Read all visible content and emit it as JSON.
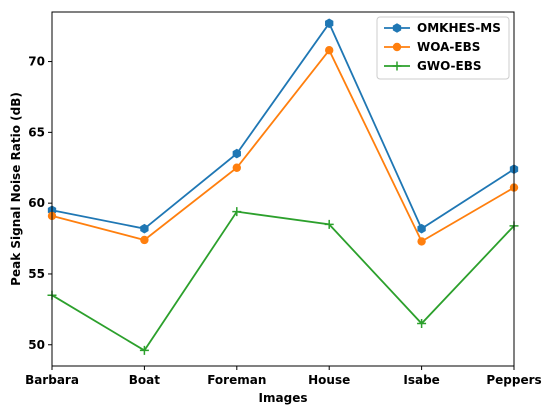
{
  "chart_data": {
    "type": "line",
    "title": "",
    "xlabel": "Images",
    "ylabel": "Peak Signal Noise Ratio (dB)",
    "categories": [
      "Barbara",
      "Boat",
      "Foreman",
      "House",
      "Isabe",
      "Peppers"
    ],
    "ylim": [
      48.5,
      73.5
    ],
    "yticks": [
      50,
      55,
      60,
      65,
      70
    ],
    "grid": false,
    "legend_position": "top-right",
    "series": [
      {
        "name": "OMKHES-MS",
        "color": "#1f77b4",
        "marker": "hexagon",
        "values": [
          59.5,
          58.2,
          63.5,
          72.7,
          58.2,
          62.4
        ]
      },
      {
        "name": "WOA-EBS",
        "color": "#ff7f0e",
        "marker": "circle",
        "values": [
          59.1,
          57.4,
          62.5,
          70.8,
          57.3,
          61.1
        ]
      },
      {
        "name": "GWO-EBS",
        "color": "#2ca02c",
        "marker": "plus",
        "values": [
          53.5,
          49.6,
          59.4,
          58.5,
          51.5,
          58.4
        ]
      }
    ]
  }
}
